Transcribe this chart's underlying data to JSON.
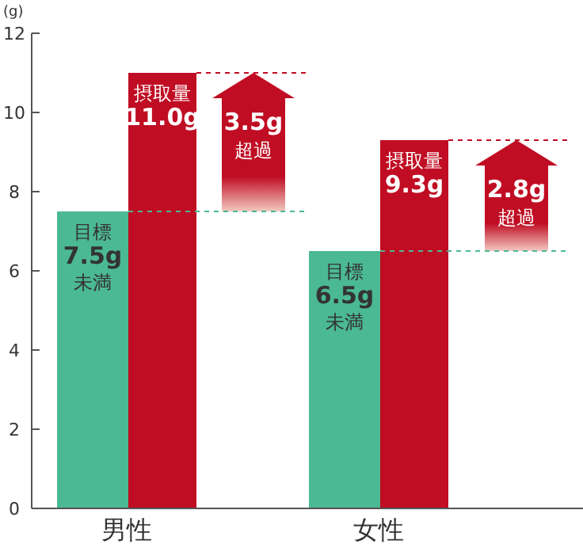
{
  "chart_data": {
    "type": "bar",
    "ylabel": "(g)",
    "categories": [
      "男性",
      "女性"
    ],
    "series": [
      {
        "color": "#4bb993",
        "values": [
          7.5,
          6.5
        ],
        "value_labels": [
          "目標 7.5g 未満",
          "目標 6.5g 未満"
        ]
      },
      {
        "color": "#c00d23",
        "values": [
          11.0,
          9.3
        ],
        "value_labels": [
          "摂取量 11.0g",
          "摂取量 9.3g"
        ]
      }
    ],
    "ylim": [
      0,
      12
    ],
    "yticks": [
      0,
      2,
      4,
      6,
      8,
      10,
      12
    ],
    "grid": false,
    "legend": false,
    "annotations": [
      "3.5g 超過",
      "2.8g 超過"
    ]
  }
}
